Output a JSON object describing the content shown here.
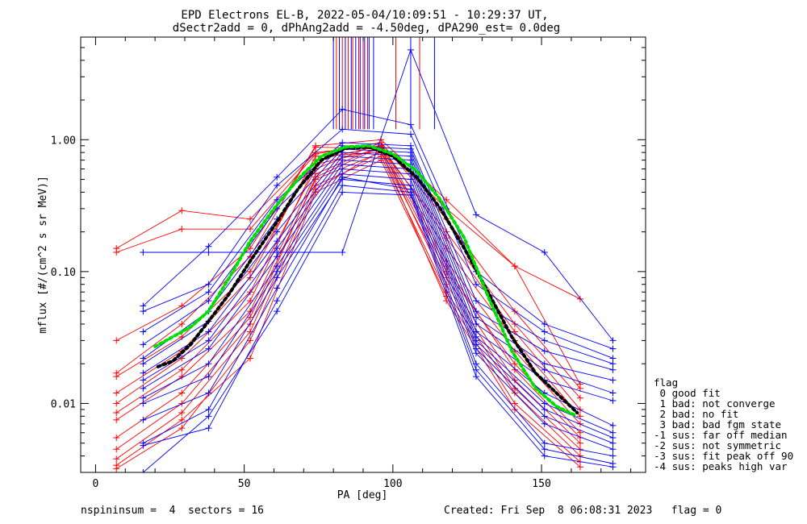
{
  "chart_data": {
    "type": "line",
    "title_line1": "EPD Electrons EL-B, 2022-05-04/10:09:51 - 10:29:37 UT,",
    "title_line2": "dSectr2add = 0, dPhAng2add = -4.50deg, dPA290_est=   0.0deg",
    "xlabel": "PA [deg]",
    "ylabel": "mflux [#/(cm^2 s sr MeV)]",
    "xlim": [
      -5,
      185
    ],
    "ylim": [
      0.003,
      6.0
    ],
    "yscale": "log",
    "xticks": [
      0,
      50,
      100,
      150
    ],
    "xtick_labels": [
      "0",
      "50",
      "100",
      "150"
    ],
    "yticks": [
      0.01,
      0.1,
      1.0
    ],
    "ytick_labels": [
      "0.01",
      "0.10",
      "1.00"
    ],
    "grid": false,
    "colors": {
      "red": "#ff0000",
      "blue": "#0000ff",
      "black": "#000000",
      "green": "#00dd00"
    },
    "red_sector_pa": [
      7,
      29,
      52,
      74,
      96,
      118,
      141,
      163
    ],
    "blue_sector_pa": [
      16,
      38,
      61,
      83,
      106,
      128,
      151,
      174
    ],
    "red_curves": [
      {
        "pa": [
          7,
          29,
          52,
          74,
          96,
          118,
          141,
          163
        ],
        "values": [
          0.15,
          0.29,
          0.25,
          0.8,
          0.9,
          0.3,
          0.11,
          0.062
        ]
      },
      {
        "pa": [
          7,
          29,
          52,
          74,
          96,
          118,
          141,
          163
        ],
        "values": [
          0.14,
          0.21,
          0.21,
          0.78,
          0.95,
          0.25,
          0.05,
          0.013
        ]
      },
      {
        "pa": [
          7,
          29,
          52,
          74,
          96,
          118,
          141,
          163
        ],
        "values": [
          0.03,
          0.055,
          0.15,
          0.88,
          0.85,
          0.2,
          0.04,
          0.011
        ]
      },
      {
        "pa": [
          7,
          29,
          52,
          74,
          96,
          118,
          141,
          163
        ],
        "values": [
          0.017,
          0.04,
          0.13,
          0.9,
          1.0,
          0.35,
          0.11,
          0.014
        ]
      },
      {
        "pa": [
          7,
          29,
          52,
          74,
          96,
          118,
          141,
          163
        ],
        "values": [
          0.016,
          0.032,
          0.1,
          0.7,
          0.9,
          0.18,
          0.035,
          0.009
        ]
      },
      {
        "pa": [
          7,
          29,
          52,
          74,
          96,
          118,
          141,
          163
        ],
        "values": [
          0.012,
          0.025,
          0.09,
          0.75,
          0.8,
          0.15,
          0.03,
          0.008
        ]
      },
      {
        "pa": [
          7,
          29,
          52,
          74,
          96,
          118,
          141,
          163
        ],
        "values": [
          0.01,
          0.022,
          0.07,
          0.6,
          0.95,
          0.12,
          0.025,
          0.007
        ]
      },
      {
        "pa": [
          7,
          29,
          52,
          74,
          96,
          118,
          141,
          163
        ],
        "values": [
          0.0085,
          0.018,
          0.06,
          0.65,
          0.85,
          0.1,
          0.02,
          0.006
        ]
      },
      {
        "pa": [
          7,
          29,
          52,
          74,
          96,
          118,
          141,
          163
        ],
        "values": [
          0.0075,
          0.016,
          0.05,
          0.55,
          0.9,
          0.11,
          0.018,
          0.0055
        ]
      },
      {
        "pa": [
          7,
          29,
          52,
          74,
          96,
          118,
          141,
          163
        ],
        "values": [
          0.0055,
          0.012,
          0.045,
          0.5,
          0.8,
          0.09,
          0.015,
          0.005
        ]
      },
      {
        "pa": [
          7,
          29,
          52,
          74,
          96,
          118,
          141,
          163
        ],
        "values": [
          0.0045,
          0.01,
          0.04,
          0.52,
          0.88,
          0.08,
          0.013,
          0.0045
        ]
      },
      {
        "pa": [
          7,
          29,
          52,
          74,
          96,
          118,
          141,
          163
        ],
        "values": [
          0.0038,
          0.0085,
          0.035,
          0.45,
          0.75,
          0.07,
          0.012,
          0.004
        ]
      },
      {
        "pa": [
          7,
          29,
          52,
          74,
          96,
          118,
          141,
          163
        ],
        "values": [
          0.0034,
          0.0075,
          0.022,
          0.4,
          0.7,
          0.065,
          0.01,
          0.0036
        ]
      },
      {
        "pa": [
          7,
          29,
          52,
          74,
          96,
          118,
          141,
          163
        ],
        "values": [
          0.0032,
          0.0065,
          0.03,
          0.42,
          0.82,
          0.06,
          0.009,
          0.0033
        ]
      }
    ],
    "blue_curves": [
      {
        "pa": [
          16,
          38,
          61,
          83,
          106,
          128,
          151,
          174
        ],
        "values": [
          0.14,
          0.14,
          0.14,
          0.14,
          4.8,
          0.27,
          0.14,
          0.03
        ]
      },
      {
        "pa": [
          16,
          38,
          61,
          83,
          106,
          128,
          151,
          174
        ],
        "values": [
          0.055,
          0.155,
          0.52,
          1.7,
          1.3,
          0.1,
          0.04,
          0.026
        ]
      },
      {
        "pa": [
          16,
          38,
          61,
          83,
          106,
          128,
          151,
          174
        ],
        "values": [
          0.05,
          0.08,
          0.45,
          1.2,
          1.1,
          0.08,
          0.035,
          0.022
        ]
      },
      {
        "pa": [
          16,
          38,
          61,
          83,
          106,
          128,
          151,
          174
        ],
        "values": [
          0.035,
          0.07,
          0.35,
          0.95,
          0.9,
          0.06,
          0.03,
          0.02
        ]
      },
      {
        "pa": [
          16,
          38,
          61,
          83,
          106,
          128,
          151,
          174
        ],
        "values": [
          0.028,
          0.06,
          0.3,
          0.9,
          0.85,
          0.05,
          0.025,
          0.018
        ]
      },
      {
        "pa": [
          16,
          38,
          61,
          83,
          106,
          128,
          151,
          174
        ],
        "values": [
          0.022,
          0.05,
          0.25,
          0.85,
          0.8,
          0.045,
          0.02,
          0.015
        ]
      },
      {
        "pa": [
          16,
          38,
          61,
          83,
          106,
          128,
          151,
          174
        ],
        "values": [
          0.02,
          0.042,
          0.2,
          0.8,
          0.75,
          0.04,
          0.018,
          0.012
        ]
      },
      {
        "pa": [
          16,
          38,
          61,
          83,
          106,
          128,
          151,
          174
        ],
        "values": [
          0.017,
          0.035,
          0.17,
          0.75,
          0.7,
          0.035,
          0.015,
          0.0105
        ]
      },
      {
        "pa": [
          16,
          38,
          61,
          83,
          106,
          128,
          151,
          174
        ],
        "values": [
          0.015,
          0.03,
          0.15,
          0.7,
          0.65,
          0.032,
          0.012,
          0.0068
        ]
      },
      {
        "pa": [
          16,
          38,
          61,
          83,
          106,
          128,
          151,
          174
        ],
        "values": [
          0.013,
          0.026,
          0.13,
          0.65,
          0.6,
          0.03,
          0.01,
          0.006
        ]
      },
      {
        "pa": [
          16,
          38,
          61,
          83,
          106,
          128,
          151,
          174
        ],
        "values": [
          0.011,
          0.02,
          0.11,
          0.6,
          0.55,
          0.028,
          0.009,
          0.0055
        ]
      },
      {
        "pa": [
          16,
          38,
          61,
          83,
          106,
          128,
          151,
          174
        ],
        "values": [
          0.01,
          0.016,
          0.1,
          0.55,
          0.5,
          0.026,
          0.008,
          0.005
        ]
      },
      {
        "pa": [
          16,
          38,
          61,
          83,
          106,
          128,
          151,
          174
        ],
        "values": [
          0.0075,
          0.012,
          0.09,
          0.5,
          0.45,
          0.024,
          0.007,
          0.0045
        ]
      },
      {
        "pa": [
          16,
          38,
          61,
          83,
          106,
          128,
          151,
          174
        ],
        "values": [
          0.005,
          0.009,
          0.075,
          0.52,
          0.42,
          0.02,
          0.005,
          0.004
        ]
      },
      {
        "pa": [
          16,
          38,
          61,
          83,
          106,
          128,
          151,
          174
        ],
        "values": [
          0.0048,
          0.0065,
          0.06,
          0.45,
          0.4,
          0.018,
          0.0045,
          0.0035
        ]
      },
      {
        "pa": [
          16,
          38,
          61,
          83,
          106,
          128,
          151,
          174
        ],
        "values": [
          0.003,
          0.008,
          0.05,
          0.4,
          0.38,
          0.016,
          0.004,
          0.0033
        ]
      }
    ],
    "error_bars": {
      "red": [
        {
          "pa": 81,
          "lo": 1.2,
          "hi": 6.0
        },
        {
          "pa": 83,
          "lo": 1.2,
          "hi": 6.0
        },
        {
          "pa": 85,
          "lo": 1.2,
          "hi": 6.0
        },
        {
          "pa": 86.5,
          "lo": 1.2,
          "hi": 6.0
        },
        {
          "pa": 88.5,
          "lo": 1.2,
          "hi": 6.0
        },
        {
          "pa": 90,
          "lo": 1.2,
          "hi": 6.0
        },
        {
          "pa": 91.5,
          "lo": 1.2,
          "hi": 6.0
        },
        {
          "pa": 101,
          "lo": 1.2,
          "hi": 6.0
        },
        {
          "pa": 109,
          "lo": 1.2,
          "hi": 6.0
        }
      ],
      "blue": [
        {
          "pa": 80,
          "lo": 1.2,
          "hi": 6.0
        },
        {
          "pa": 82,
          "lo": 1.2,
          "hi": 6.0
        },
        {
          "pa": 84,
          "lo": 1.2,
          "hi": 6.0
        },
        {
          "pa": 86,
          "lo": 1.2,
          "hi": 6.0
        },
        {
          "pa": 87.5,
          "lo": 1.2,
          "hi": 6.0
        },
        {
          "pa": 89,
          "lo": 1.2,
          "hi": 6.0
        },
        {
          "pa": 90.5,
          "lo": 1.2,
          "hi": 6.0
        },
        {
          "pa": 92,
          "lo": 1.2,
          "hi": 6.0
        },
        {
          "pa": 93.5,
          "lo": 1.2,
          "hi": 6.0
        },
        {
          "pa": 106,
          "lo": 1.2,
          "hi": 6.0
        },
        {
          "pa": 114,
          "lo": 1.2,
          "hi": 6.0
        }
      ]
    },
    "black_fit": {
      "pa": [
        21,
        26,
        32,
        38,
        45,
        52,
        60,
        68,
        76,
        84,
        92,
        100,
        108,
        116,
        124,
        132,
        140,
        148,
        155,
        162
      ],
      "values": [
        0.019,
        0.021,
        0.028,
        0.042,
        0.068,
        0.12,
        0.22,
        0.42,
        0.7,
        0.86,
        0.88,
        0.75,
        0.52,
        0.3,
        0.15,
        0.07,
        0.032,
        0.017,
        0.012,
        0.0085
      ]
    },
    "green_fit": {
      "pa": [
        20,
        26,
        32,
        38,
        45,
        52,
        60,
        68,
        76,
        84,
        92,
        100,
        108,
        116,
        124,
        132,
        140,
        148,
        155,
        161
      ],
      "values": [
        0.027,
        0.032,
        0.038,
        0.05,
        0.09,
        0.17,
        0.3,
        0.5,
        0.75,
        0.88,
        0.9,
        0.78,
        0.58,
        0.35,
        0.18,
        0.065,
        0.025,
        0.013,
        0.0095,
        0.0082
      ]
    }
  },
  "legend": {
    "lines": [
      "flag",
      " 0 good fit",
      " 1 bad: not converge",
      " 2 bad: no fit",
      " 3 bad: bad fgm state",
      "-1 sus: far off median",
      "-2 sus: not symmetric",
      "-3 sus: fit peak off 90",
      "-4 sus: peaks high var"
    ]
  },
  "footer": {
    "left": "nspininsum =  4  sectors = 16",
    "right": "Created: Fri Sep  8 06:08:31 2023   flag = 0"
  }
}
